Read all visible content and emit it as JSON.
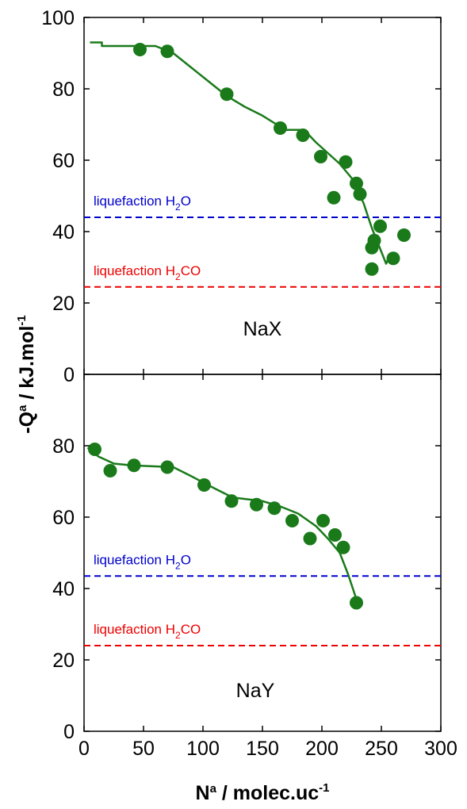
{
  "chart_data": {
    "type": "scatter",
    "shared_x_axis": {
      "label_main": "N",
      "label_sup": "a",
      "label_rest": " / molec.uc",
      "label_exp": "-1",
      "xlim": [
        0,
        300
      ],
      "ticks": [
        0,
        50,
        100,
        150,
        200,
        250,
        300
      ]
    },
    "shared_y_axis": {
      "label_main": "-Q",
      "label_sup": "a",
      "label_rest": " / kJ.mol",
      "label_exp": "-1"
    },
    "colors": {
      "points": "#1a7a1a",
      "line": "#1a7a1a",
      "water_line": "#0000cc",
      "formaldehyde_line": "#ee0000"
    },
    "panels": [
      {
        "name": "NaX",
        "ylim": [
          0,
          100
        ],
        "y_ticks": [
          0,
          20,
          40,
          60,
          80,
          100
        ],
        "reference_lines": [
          {
            "id": "water",
            "y": 44,
            "label_pre": "liquefaction H",
            "label_sub": "2",
            "label_post": "O"
          },
          {
            "id": "formaldehyde",
            "y": 24.5,
            "label_pre": "liquefaction H",
            "label_sub": "2",
            "label_post": "CO"
          }
        ],
        "points": [
          {
            "x": 47,
            "y": 91
          },
          {
            "x": 70,
            "y": 90.5
          },
          {
            "x": 120,
            "y": 78.5
          },
          {
            "x": 165,
            "y": 69
          },
          {
            "x": 184,
            "y": 67
          },
          {
            "x": 199,
            "y": 61
          },
          {
            "x": 210,
            "y": 49.5
          },
          {
            "x": 220,
            "y": 59.5
          },
          {
            "x": 229,
            "y": 53.5
          },
          {
            "x": 232,
            "y": 50.5
          },
          {
            "x": 244,
            "y": 37.5
          },
          {
            "x": 242,
            "y": 35.5
          },
          {
            "x": 249,
            "y": 41.5
          },
          {
            "x": 242,
            "y": 29.5
          },
          {
            "x": 260,
            "y": 32.5
          },
          {
            "x": 269,
            "y": 39
          }
        ],
        "curve": [
          {
            "x": 5,
            "y": 93
          },
          {
            "x": 15,
            "y": 93
          },
          {
            "x": 15,
            "y": 92
          },
          {
            "x": 60,
            "y": 92
          },
          {
            "x": 75,
            "y": 90
          },
          {
            "x": 90,
            "y": 86
          },
          {
            "x": 105,
            "y": 82
          },
          {
            "x": 120,
            "y": 78
          },
          {
            "x": 135,
            "y": 75
          },
          {
            "x": 150,
            "y": 72.5
          },
          {
            "x": 162,
            "y": 70
          },
          {
            "x": 168,
            "y": 68.5
          },
          {
            "x": 185,
            "y": 68.5
          },
          {
            "x": 195,
            "y": 65
          },
          {
            "x": 205,
            "y": 62
          },
          {
            "x": 215,
            "y": 59
          },
          {
            "x": 225,
            "y": 55
          },
          {
            "x": 235,
            "y": 48
          },
          {
            "x": 242,
            "y": 41
          },
          {
            "x": 248,
            "y": 36
          },
          {
            "x": 254,
            "y": 31
          },
          {
            "x": 258,
            "y": 34
          }
        ]
      },
      {
        "name": "NaY",
        "ylim": [
          0,
          100
        ],
        "y_ticks": [
          0,
          20,
          40,
          60,
          80
        ],
        "reference_lines": [
          {
            "id": "water",
            "y": 43.5,
            "label_pre": "liquefaction H",
            "label_sub": "2",
            "label_post": "O"
          },
          {
            "id": "formaldehyde",
            "y": 24,
            "label_pre": "liquefaction H",
            "label_sub": "2",
            "label_post": "CO"
          }
        ],
        "points": [
          {
            "x": 9,
            "y": 79
          },
          {
            "x": 22,
            "y": 73
          },
          {
            "x": 42,
            "y": 74.5
          },
          {
            "x": 70,
            "y": 74
          },
          {
            "x": 101,
            "y": 69
          },
          {
            "x": 124,
            "y": 64.5
          },
          {
            "x": 145,
            "y": 63.5
          },
          {
            "x": 160,
            "y": 62.5
          },
          {
            "x": 175,
            "y": 59
          },
          {
            "x": 190,
            "y": 54
          },
          {
            "x": 201,
            "y": 59
          },
          {
            "x": 211,
            "y": 55
          },
          {
            "x": 218,
            "y": 51.5
          },
          {
            "x": 229,
            "y": 36
          }
        ],
        "curve": [
          {
            "x": 3,
            "y": 79.5
          },
          {
            "x": 12,
            "y": 77
          },
          {
            "x": 25,
            "y": 75
          },
          {
            "x": 40,
            "y": 74.5
          },
          {
            "x": 75,
            "y": 74
          },
          {
            "x": 90,
            "y": 71.5
          },
          {
            "x": 110,
            "y": 68
          },
          {
            "x": 125,
            "y": 65.5
          },
          {
            "x": 150,
            "y": 64.5
          },
          {
            "x": 165,
            "y": 63
          },
          {
            "x": 180,
            "y": 61
          },
          {
            "x": 195,
            "y": 57.5
          },
          {
            "x": 205,
            "y": 54
          },
          {
            "x": 215,
            "y": 50
          },
          {
            "x": 222,
            "y": 44
          },
          {
            "x": 228,
            "y": 38
          },
          {
            "x": 231,
            "y": 35
          }
        ]
      }
    ]
  }
}
